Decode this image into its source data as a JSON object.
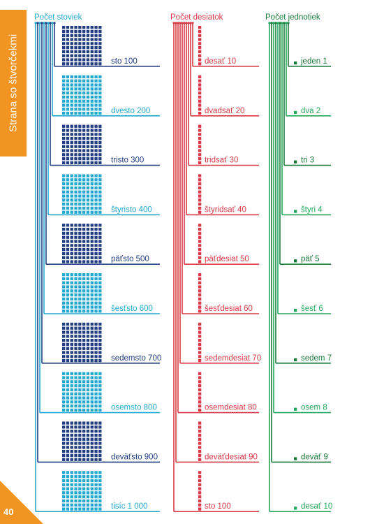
{
  "side_tab": {
    "label": "Strana so štvorčekmi"
  },
  "page_number": "40",
  "colors": {
    "dark_blue": "#233f82",
    "light_blue": "#25a9cf",
    "red": "#d93a48",
    "dark_green": "#1a7a3b",
    "light_green": "#23a85c",
    "orange": "#f29422"
  },
  "hundreds": {
    "header": "Počet stoviek",
    "rows": [
      {
        "label": "sto 100",
        "tone": "dark"
      },
      {
        "label": "dvesto 200",
        "tone": "light"
      },
      {
        "label": "tristo 300",
        "tone": "dark"
      },
      {
        "label": "štyristo 400",
        "tone": "light"
      },
      {
        "label": "päťsto 500",
        "tone": "dark"
      },
      {
        "label": "šesťsto 600",
        "tone": "light"
      },
      {
        "label": "sedemsto 700",
        "tone": "dark"
      },
      {
        "label": "osemsto 800",
        "tone": "light"
      },
      {
        "label": "deväťsto 900",
        "tone": "dark"
      },
      {
        "label": "tisíc 1 000",
        "tone": "light"
      }
    ]
  },
  "tens": {
    "header": "Počet desiatok",
    "rows": [
      "desať 10",
      "dvadsať 20",
      "tridsať 30",
      "štyridsať 40",
      "päťdesiat 50",
      "šesťdesiat 60",
      "sedemdesiat 70",
      "osemdesiat 80",
      "deväťdesiat 90",
      "sto 100"
    ]
  },
  "ones": {
    "header": "Počet jednotiek",
    "rows": [
      {
        "label": "jeden 1",
        "tone": "dark"
      },
      {
        "label": "dva 2",
        "tone": "light"
      },
      {
        "label": "tri 3",
        "tone": "dark"
      },
      {
        "label": "štyri 4",
        "tone": "light"
      },
      {
        "label": "päť 5",
        "tone": "dark"
      },
      {
        "label": "šesť 6",
        "tone": "light"
      },
      {
        "label": "sedem 7",
        "tone": "dark"
      },
      {
        "label": "osem 8",
        "tone": "light"
      },
      {
        "label": "deväť 9",
        "tone": "dark"
      },
      {
        "label": "desať 10",
        "tone": "light"
      }
    ]
  }
}
